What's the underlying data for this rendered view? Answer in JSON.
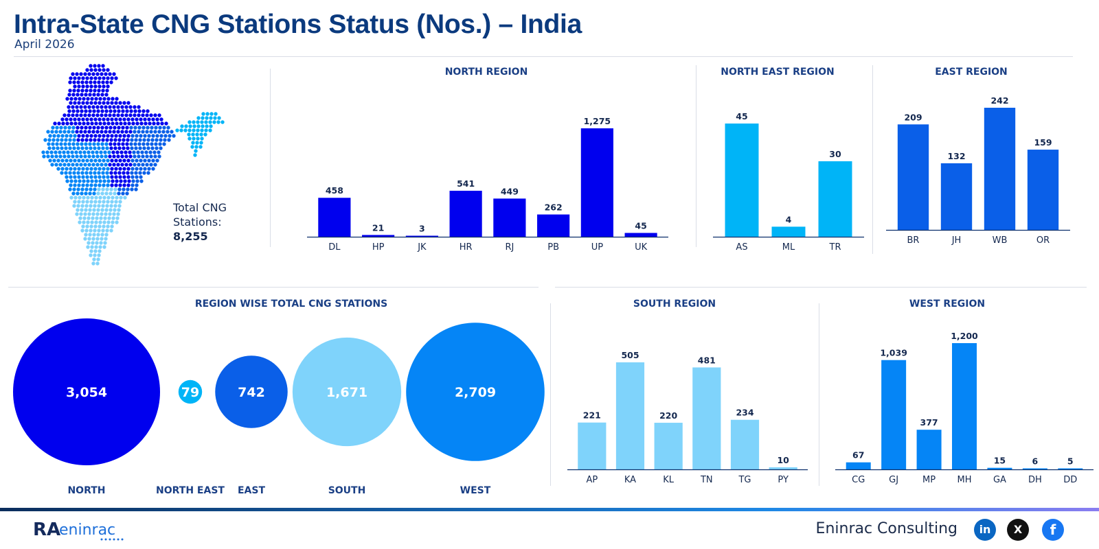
{
  "page": {
    "title": "Intra-State CNG Stations Status (Nos.) – India",
    "subtitle": "April 2026"
  },
  "summary": {
    "total_label": "Total CNG Stations:",
    "total_value": "8,255"
  },
  "colors": {
    "north": "#0000ee",
    "north_east": "#00b4f7",
    "east": "#0a5fe8",
    "south": "#7fd3fb",
    "west": "#0585f6",
    "axis": "#0b2f6b"
  },
  "footer": {
    "brand": "Eninrac Consulting",
    "logo_left": "RA",
    "logo_right": "eninrac",
    "social": [
      "linkedin-icon",
      "x-icon",
      "facebook-icon"
    ],
    "social_glyphs": [
      "in",
      "X",
      "f"
    ]
  },
  "chart_data": [
    {
      "type": "bar",
      "title": "NORTH REGION",
      "categories": [
        "DL",
        "HP",
        "JK",
        "HR",
        "RJ",
        "PB",
        "UP",
        "UK"
      ],
      "values": [
        458,
        21,
        3,
        541,
        449,
        262,
        1275,
        45
      ],
      "labels": [
        "458",
        "21",
        "3",
        "541",
        "449",
        "262",
        "1,275",
        "45"
      ],
      "color": "#0000ee"
    },
    {
      "type": "bar",
      "title": "NORTH EAST REGION",
      "categories": [
        "AS",
        "ML",
        "TR"
      ],
      "values": [
        45,
        4,
        30
      ],
      "labels": [
        "45",
        "4",
        "30"
      ],
      "color": "#00b4f7"
    },
    {
      "type": "bar",
      "title": "EAST REGION",
      "categories": [
        "BR",
        "JH",
        "WB",
        "OR"
      ],
      "values": [
        209,
        132,
        242,
        159
      ],
      "labels": [
        "209",
        "132",
        "242",
        "159"
      ],
      "color": "#0a5fe8"
    },
    {
      "type": "bubble",
      "title": "REGION WISE TOTAL CNG STATIONS",
      "categories": [
        "NORTH",
        "NORTH EAST",
        "EAST",
        "SOUTH",
        "WEST"
      ],
      "values": [
        3054,
        79,
        742,
        1671,
        2709
      ],
      "labels": [
        "3,054",
        "79",
        "742",
        "1,671",
        "2,709"
      ],
      "colors": [
        "#0000ee",
        "#00b4f7",
        "#0a5fe8",
        "#7fd3fb",
        "#0585f6"
      ]
    },
    {
      "type": "bar",
      "title": "SOUTH REGION",
      "categories": [
        "AP",
        "KA",
        "KL",
        "TN",
        "TG",
        "PY"
      ],
      "values": [
        221,
        505,
        220,
        481,
        234,
        10
      ],
      "labels": [
        "221",
        "505",
        "220",
        "481",
        "234",
        "10"
      ],
      "color": "#7fd3fb"
    },
    {
      "type": "bar",
      "title": "WEST REGION",
      "categories": [
        "CG",
        "GJ",
        "MP",
        "MH",
        "GA",
        "DH",
        "DD"
      ],
      "values": [
        67,
        1039,
        377,
        1200,
        15,
        6,
        5
      ],
      "labels": [
        "67",
        "1,039",
        "377",
        "1,200",
        "15",
        "6",
        "5"
      ],
      "color": "#0585f6"
    }
  ]
}
